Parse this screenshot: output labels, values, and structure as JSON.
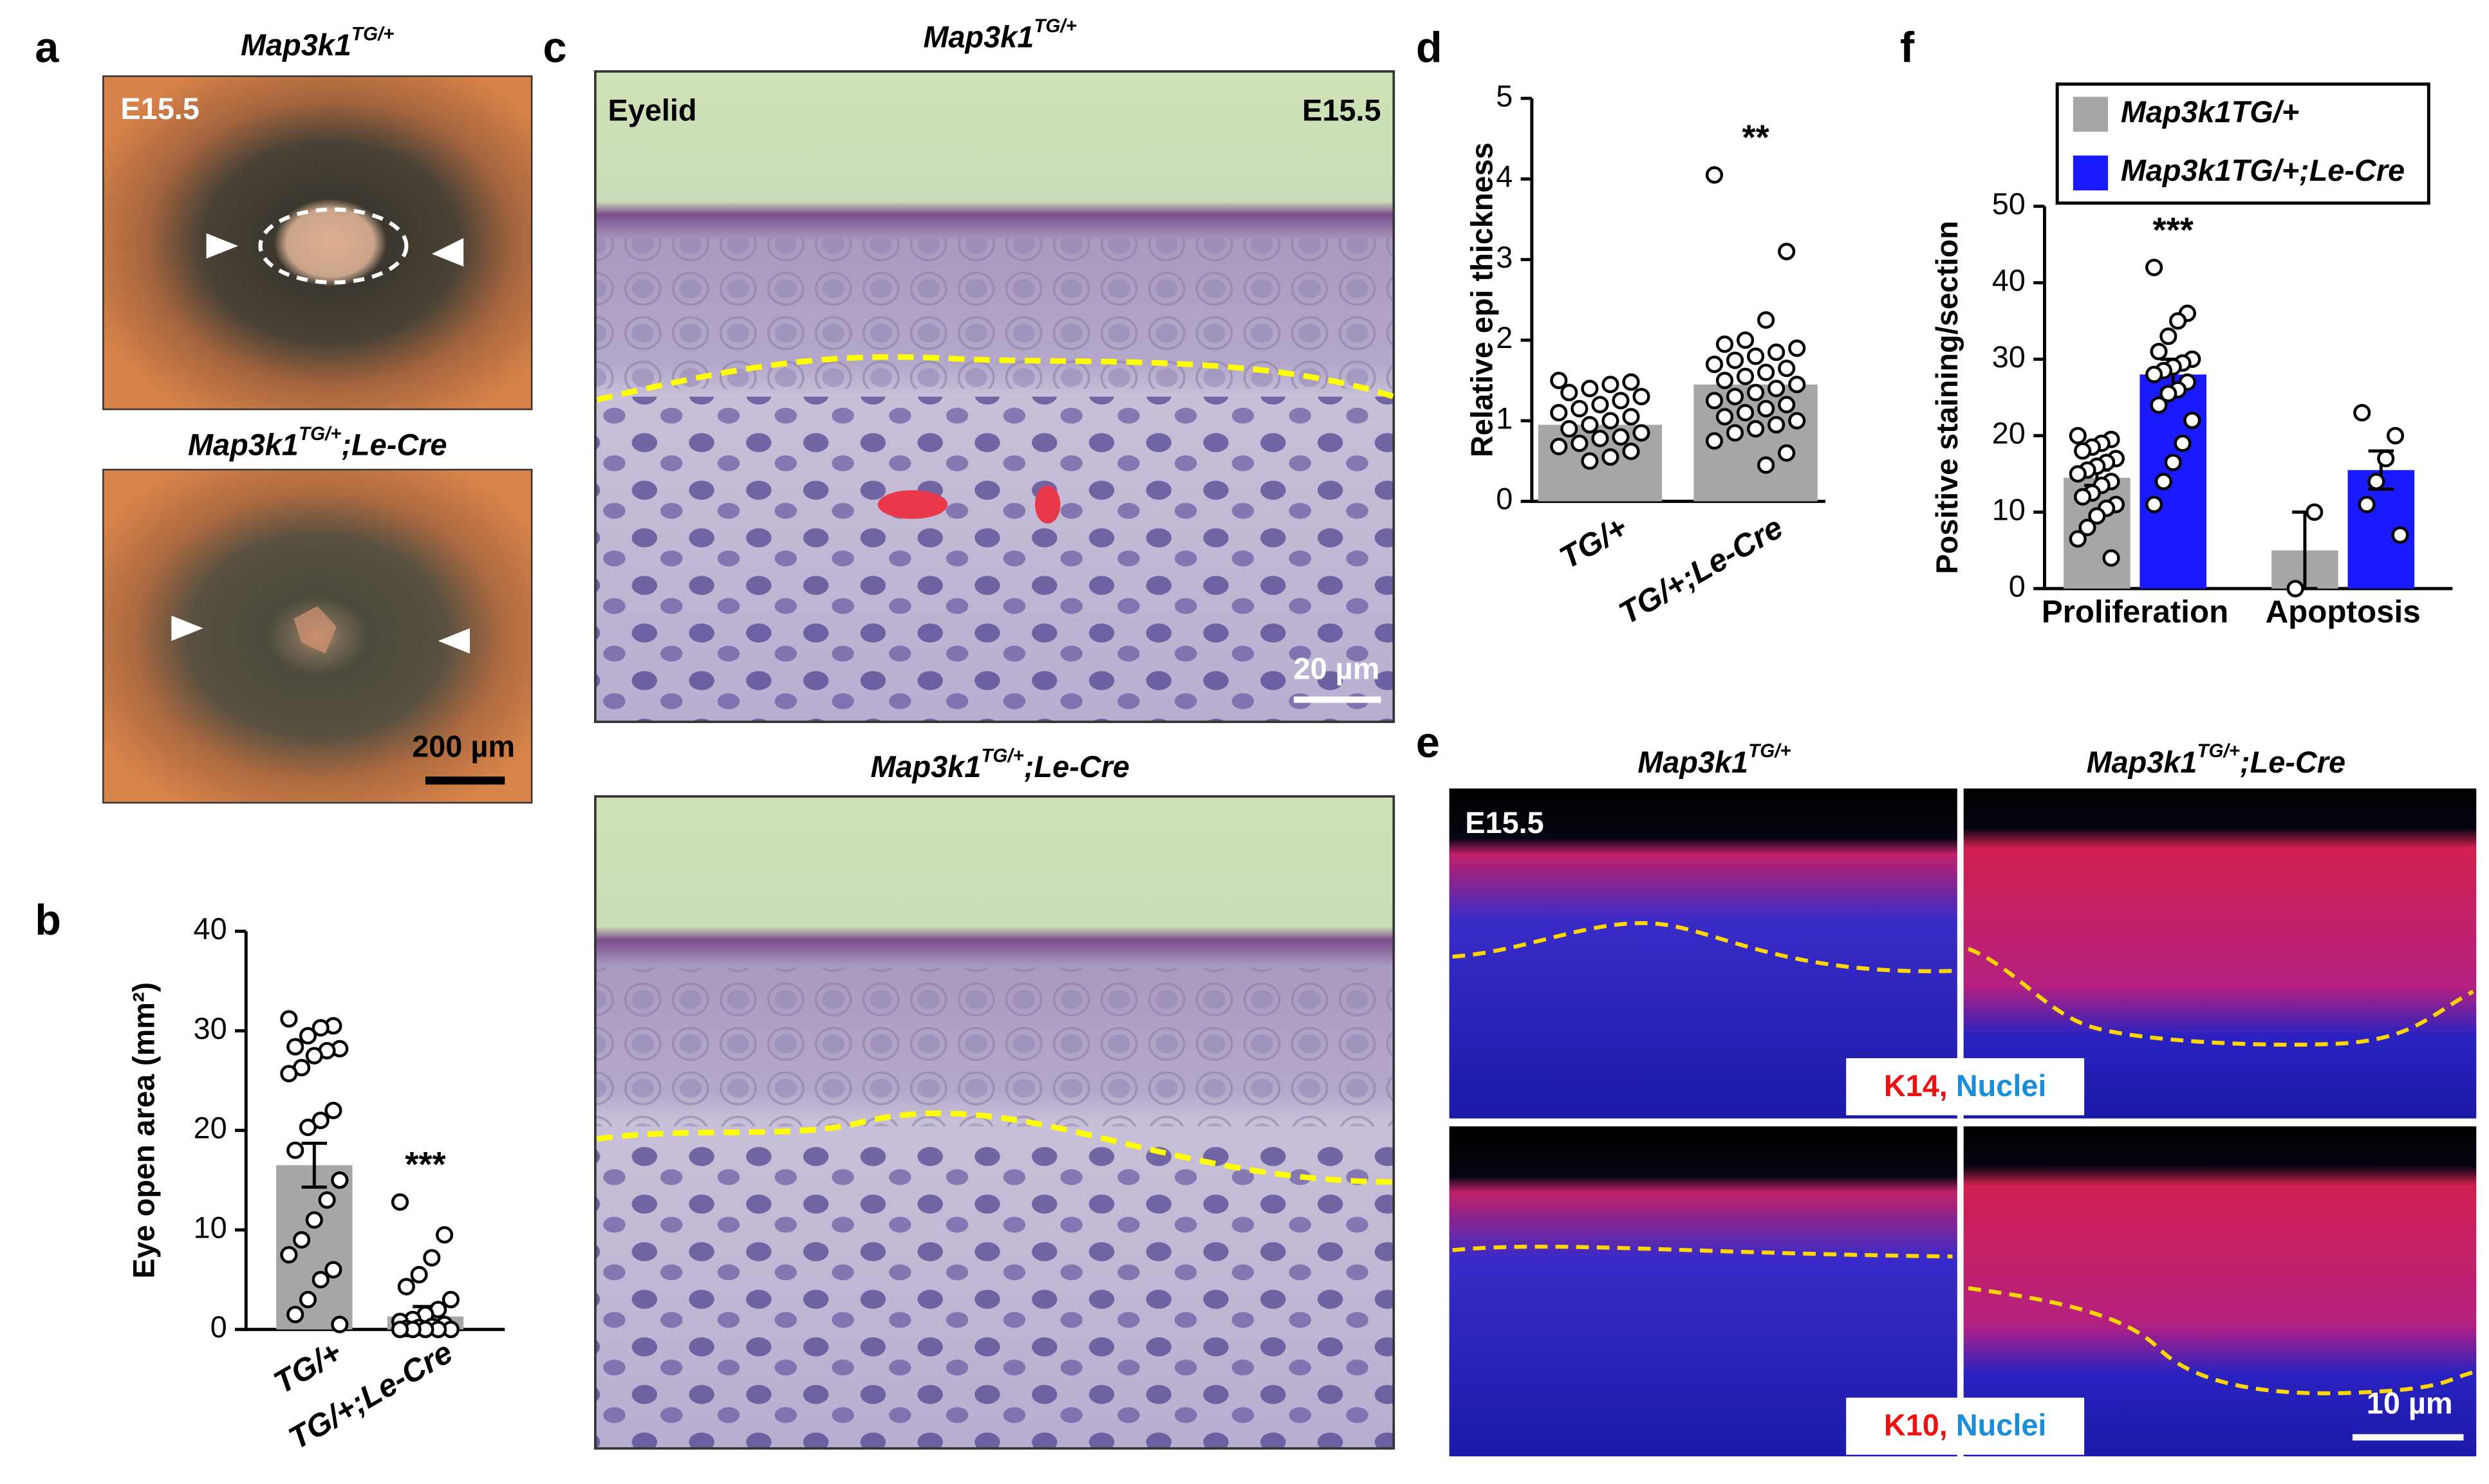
{
  "figure": {
    "panel_labels": [
      "a",
      "b",
      "c",
      "d",
      "e",
      "f"
    ],
    "a": {
      "top_label": {
        "gene": "Map3k1",
        "sup": "TG/+"
      },
      "bottom_label": {
        "gene": "Map3k1",
        "sup": "TG/+",
        "suffix": ";Le-Cre"
      },
      "stage": "E15.5",
      "scale_bar": "200 µm"
    },
    "c": {
      "top_label": {
        "gene": "Map3k1",
        "sup": "TG/+"
      },
      "bottom_label": {
        "gene": "Map3k1",
        "sup": "TG/+",
        "suffix": ";Le-Cre"
      },
      "region": "Eyelid",
      "stage": "E15.5",
      "scale_bar": "20 µm"
    },
    "e": {
      "left_label": {
        "gene": "Map3k1",
        "sup": "TG/+"
      },
      "right_label": {
        "gene": "Map3k1",
        "sup": "TG/+",
        "suffix": ";Le-Cre"
      },
      "stage": "E15.5",
      "scale_bar": "10 µm",
      "stains": [
        {
          "marker": "K14,",
          "counterstain": "Nuclei"
        },
        {
          "marker": "K10,",
          "counterstain": "Nuclei"
        }
      ]
    }
  },
  "chart_data": [
    {
      "type": "bar",
      "ylabel": "Eye open area (mm²)",
      "categories": [
        "TG/+",
        "TG/+;Le-Cre"
      ],
      "values": [
        16.5,
        1.3
      ],
      "errors": [
        2.2,
        1.0
      ],
      "color": "#a6a6a6",
      "points": [
        [
          31.2,
          30.5,
          30.3,
          29.5,
          28.4,
          28.2,
          28,
          27.5,
          26.3,
          25.7,
          22,
          21,
          20.3,
          18,
          15,
          13,
          11,
          9,
          7.5,
          6,
          5,
          3,
          1.5,
          0.5
        ],
        [
          12.8,
          9.5,
          7.2,
          5.5,
          4.3,
          3,
          2,
          1.5,
          1,
          0.8,
          0.5,
          0.3,
          0.2,
          0.1,
          0,
          0,
          0,
          0,
          0
        ]
      ],
      "annotations": [
        null,
        "***"
      ],
      "ylim": [
        0,
        40
      ],
      "yticks": [
        0,
        10,
        20,
        30,
        40
      ]
    },
    {
      "type": "bar",
      "ylabel": "Relative epi thickness",
      "categories": [
        "TG/+",
        "TG/+;Le-Cre"
      ],
      "values": [
        0.95,
        1.45
      ],
      "color": "#a6a6a6",
      "points": [
        [
          1.5,
          1.48,
          1.45,
          1.4,
          1.35,
          1.3,
          1.25,
          1.2,
          1.15,
          1.1,
          1.05,
          1.0,
          0.95,
          0.9,
          0.85,
          0.8,
          0.78,
          0.72,
          0.68,
          0.62,
          0.55,
          0.5
        ],
        [
          4.05,
          3.1,
          2.25,
          2.0,
          1.95,
          1.9,
          1.85,
          1.8,
          1.75,
          1.7,
          1.65,
          1.6,
          1.55,
          1.5,
          1.45,
          1.4,
          1.35,
          1.3,
          1.25,
          1.2,
          1.15,
          1.1,
          1.05,
          1.0,
          0.95,
          0.9,
          0.85,
          0.75,
          0.6,
          0.45
        ]
      ],
      "annotations": [
        null,
        "**"
      ],
      "ylim": [
        0,
        5
      ],
      "yticks": [
        0,
        1,
        2,
        3,
        4,
        5
      ]
    },
    {
      "type": "bar",
      "ylabel": "Positive staining/section",
      "categories": [
        "Proliferation",
        "Apoptosis"
      ],
      "series": [
        {
          "name": "Map3k1TG/+",
          "color": "#a6a6a6",
          "values": [
            14.5,
            5
          ],
          "errors": [
            1,
            5
          ],
          "points": [
            [
              20,
              19.5,
              19,
              18.5,
              18,
              17,
              16.5,
              16,
              15.5,
              15,
              14,
              13.5,
              12.5,
              12,
              11,
              10.5,
              9.5,
              8,
              6.5,
              4
            ],
            [
              10,
              0
            ]
          ],
          "annotations": [
            null,
            null
          ]
        },
        {
          "name": "Map3k1TG/+;Le-Cre",
          "color": "#1a1aff",
          "values": [
            28,
            15.5
          ],
          "errors": [
            2,
            2.5
          ],
          "points": [
            [
              42,
              36,
              35,
              33,
              31,
              30,
              29.5,
              29,
              28.5,
              28,
              27,
              26,
              25.5,
              24,
              22,
              19,
              16.5,
              14,
              11
            ],
            [
              23,
              20,
              17,
              14,
              11,
              7
            ]
          ],
          "annotations": [
            "***",
            null
          ]
        }
      ],
      "legend": "top",
      "ylim": [
        0,
        50
      ],
      "yticks": [
        0,
        10,
        20,
        30,
        40,
        50
      ]
    }
  ]
}
